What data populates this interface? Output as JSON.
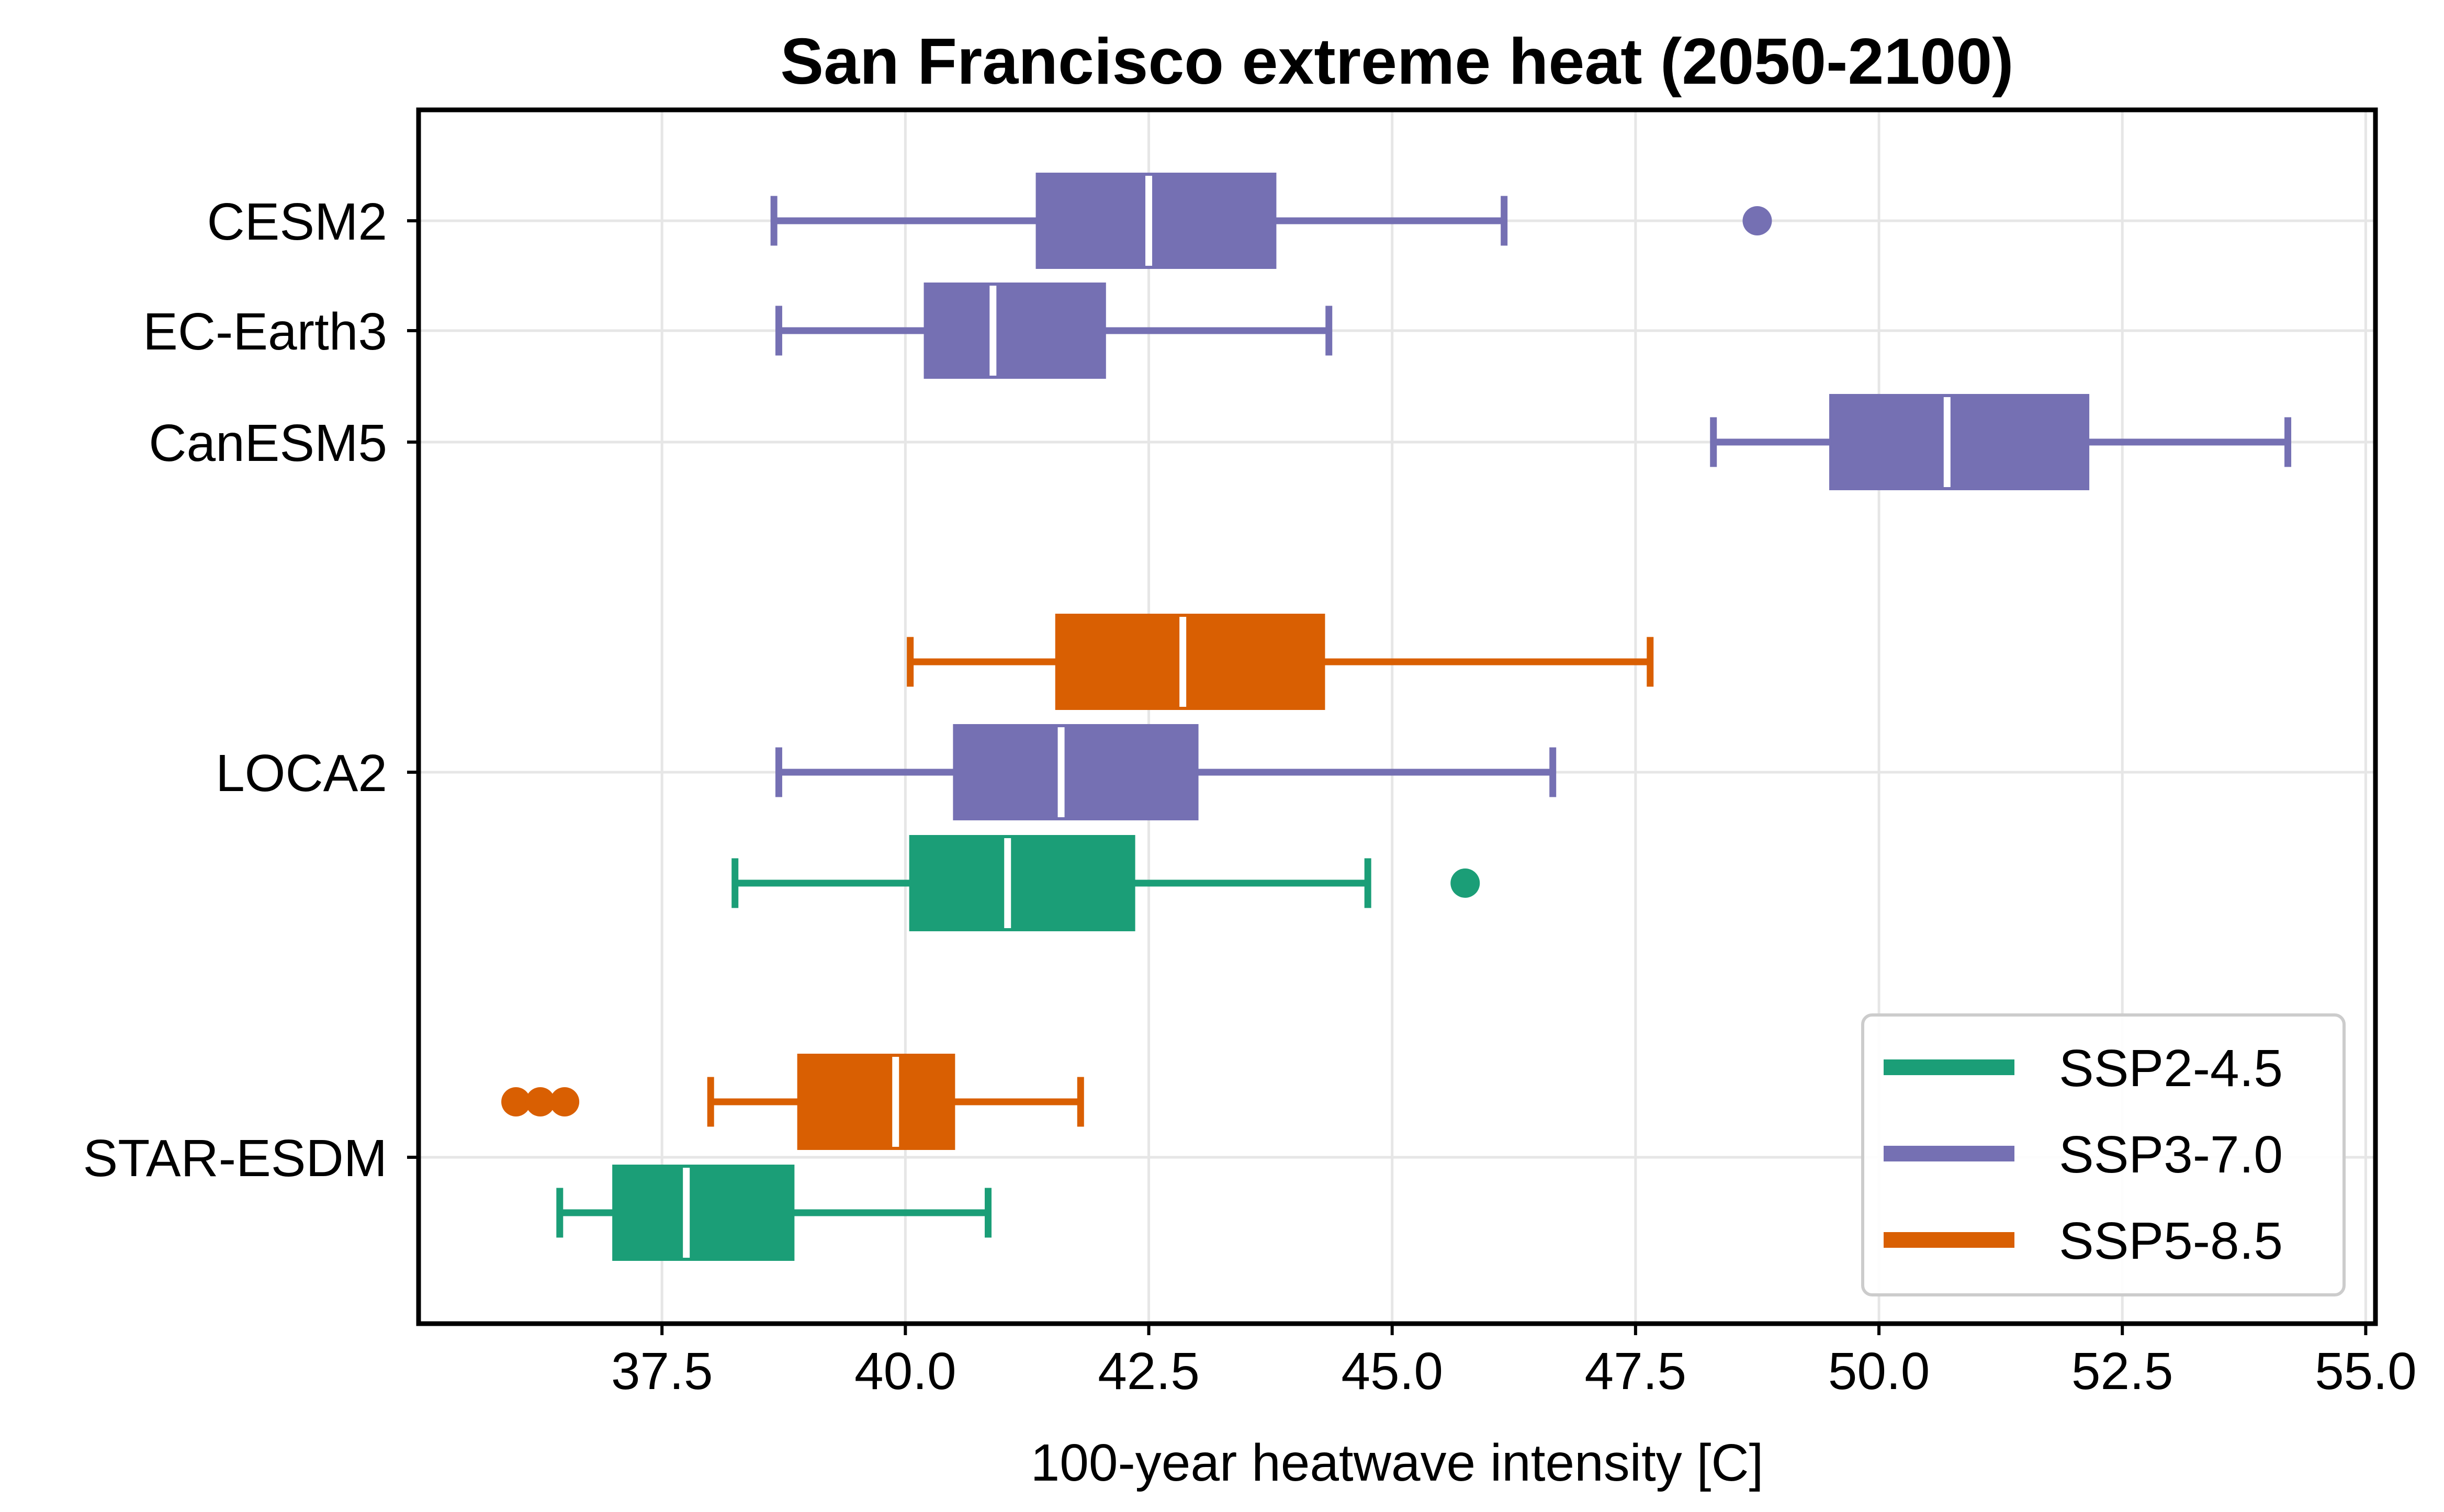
{
  "chart_data": {
    "type": "boxplot",
    "orientation": "horizontal",
    "title": "San Francisco extreme heat (2050-2100)",
    "xlabel": "100-year heatwave intensity [C]",
    "ylabel": "",
    "xlim": [
      35.0,
      55.1
    ],
    "xticks": [
      37.5,
      40.0,
      42.5,
      45.0,
      47.5,
      50.0,
      52.5,
      55.0
    ],
    "xtick_labels": [
      "37.5",
      "40.0",
      "42.5",
      "45.0",
      "47.5",
      "50.0",
      "52.5",
      "55.0"
    ],
    "grid": true,
    "legend_position": "lower-right",
    "categories": [
      "CESM2",
      "EC-Earth3",
      "CanESM5",
      "LOCA2",
      "STAR-ESDM"
    ],
    "series": [
      {
        "name": "SSP2-4.5",
        "color": "#1b9e77"
      },
      {
        "name": "SSP3-7.0",
        "color": "#7570b3"
      },
      {
        "name": "SSP5-8.5",
        "color": "#d95f02"
      }
    ],
    "boxes": [
      {
        "category": "CESM2",
        "series": "SSP3-7.0",
        "whisker_low": 38.65,
        "q1": 41.35,
        "median": 42.5,
        "q3": 43.8,
        "whisker_high": 46.15,
        "outliers": [
          48.75
        ]
      },
      {
        "category": "EC-Earth3",
        "series": "SSP3-7.0",
        "whisker_low": 38.7,
        "q1": 40.2,
        "median": 40.9,
        "q3": 42.05,
        "whisker_high": 44.35,
        "outliers": []
      },
      {
        "category": "CanESM5",
        "series": "SSP3-7.0",
        "whisker_low": 48.3,
        "q1": 49.5,
        "median": 50.7,
        "q3": 52.15,
        "whisker_high": 54.2,
        "outliers": []
      },
      {
        "category": "LOCA2",
        "series": "SSP5-8.5",
        "whisker_low": 40.05,
        "q1": 41.55,
        "median": 42.85,
        "q3": 44.3,
        "whisker_high": 47.65,
        "outliers": []
      },
      {
        "category": "LOCA2",
        "series": "SSP3-7.0",
        "whisker_low": 38.7,
        "q1": 40.5,
        "median": 41.6,
        "q3": 43.0,
        "whisker_high": 46.65,
        "outliers": []
      },
      {
        "category": "LOCA2",
        "series": "SSP2-4.5",
        "whisker_low": 38.25,
        "q1": 40.05,
        "median": 41.05,
        "q3": 42.35,
        "whisker_high": 44.75,
        "outliers": [
          45.75
        ]
      },
      {
        "category": "STAR-ESDM",
        "series": "SSP5-8.5",
        "whisker_low": 38.0,
        "q1": 38.9,
        "median": 39.9,
        "q3": 40.5,
        "whisker_high": 41.8,
        "outliers": [
          36.0,
          36.25,
          36.5
        ]
      },
      {
        "category": "STAR-ESDM",
        "series": "SSP2-4.5",
        "whisker_low": 36.45,
        "q1": 37.0,
        "median": 37.75,
        "q3": 38.85,
        "whisker_high": 40.85,
        "outliers": []
      }
    ]
  }
}
